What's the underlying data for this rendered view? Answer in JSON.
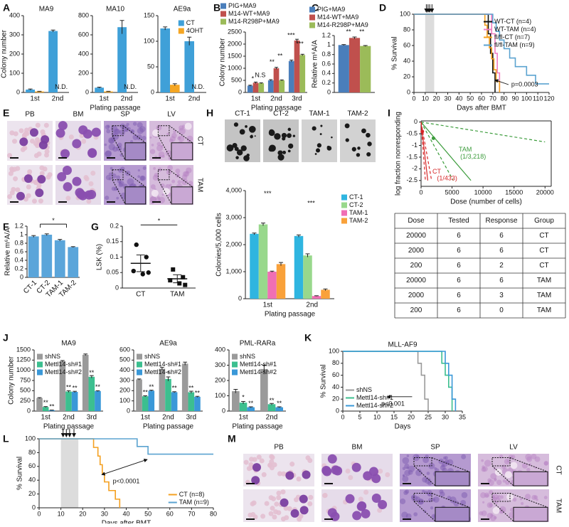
{
  "panels": [
    "A",
    "B",
    "C",
    "D",
    "E",
    "F",
    "G",
    "H",
    "I",
    "J",
    "K",
    "L",
    "M"
  ],
  "images": {
    "E": {
      "columns": [
        "PB",
        "BM",
        "SP",
        "LV"
      ],
      "rows": [
        "CT",
        "TAM"
      ]
    },
    "H": {
      "labels": [
        "CT-1",
        "CT-2",
        "TAM-1",
        "TAM-2"
      ]
    },
    "M": {
      "columns": [
        "PB",
        "BM",
        "SP",
        "LV"
      ],
      "rows": [
        "CT",
        "TAM"
      ]
    }
  },
  "table": {
    "header": [
      "Dose",
      "Tested",
      "Response",
      "Group"
    ],
    "rows": [
      [
        20000,
        6,
        6,
        "CT"
      ],
      [
        2000,
        6,
        6,
        "CT"
      ],
      [
        200,
        6,
        2,
        "CT"
      ],
      [
        20000,
        6,
        6,
        "TAM"
      ],
      [
        2000,
        6,
        3,
        "TAM"
      ],
      [
        200,
        6,
        0,
        "TAM"
      ]
    ]
  },
  "chart_data": [
    {
      "type": "bar",
      "title": "MA9",
      "ylabel": "Colony number",
      "categories": [
        "1st",
        "2nd"
      ],
      "series": [
        {
          "color": "#3fa0d8",
          "values": [
            15,
            320
          ],
          "errors": [
            3,
            5
          ]
        },
        {
          "color": "#f5a623",
          "values": [
            5,
            null
          ],
          "errors": [
            1,
            null
          ]
        }
      ],
      "ylim": [
        0,
        400
      ],
      "yticks": [
        0,
        100,
        200,
        300,
        400
      ],
      "annotations": [
        "N.D."
      ]
    },
    {
      "type": "bar",
      "title": "MA10",
      "xlabel": "Plating passage",
      "categories": [
        "1st",
        "2nd"
      ],
      "series": [
        {
          "color": "#3fa0d8",
          "values": [
            50,
            680
          ],
          "errors": [
            5,
            70
          ]
        },
        {
          "color": "#f5a623",
          "values": [
            10,
            null
          ],
          "errors": [
            2,
            null
          ]
        }
      ],
      "ylim": [
        0,
        800
      ],
      "yticks": [
        0,
        200,
        400,
        600,
        800
      ],
      "annotations": [
        "N.D."
      ]
    },
    {
      "type": "bar",
      "title": "AE9a",
      "categories": [
        "1st",
        "2nd"
      ],
      "legend": "upper right",
      "series": [
        {
          "name": "CT",
          "color": "#3fa0d8",
          "values": [
            125,
            100
          ],
          "errors": [
            3,
            8
          ]
        },
        {
          "name": "4OHT",
          "color": "#f5a623",
          "values": [
            15,
            null
          ],
          "errors": [
            2,
            null
          ]
        }
      ],
      "ylim": [
        0,
        150
      ],
      "yticks": [
        0,
        50,
        100,
        150
      ],
      "annotations": [
        "N.D."
      ]
    },
    {
      "type": "bar",
      "ylabel": "Colony number",
      "xlabel": "Plating passage",
      "categories": [
        "1st",
        "2nd",
        "3rd"
      ],
      "legend": "above",
      "series": [
        {
          "name": "PIG+MA9",
          "color": "#4a7ebb",
          "values": [
            280,
            500,
            1300
          ],
          "errors": [
            20,
            30,
            40
          ]
        },
        {
          "name": "M14-WT+MA9",
          "color": "#c0504d",
          "values": [
            400,
            1000,
            2150
          ],
          "errors": [
            30,
            40,
            50
          ]
        },
        {
          "name": "M14-R298P+MA9",
          "color": "#9bbb59",
          "values": [
            380,
            500,
            1550
          ],
          "errors": [
            20,
            20,
            30
          ]
        }
      ],
      "ylim": [
        0,
        2500
      ],
      "yticks": [
        0,
        500,
        1000,
        1500,
        2000,
        2500
      ],
      "annotations": [
        "*",
        "N.S",
        "**",
        "**",
        "***",
        "***"
      ]
    },
    {
      "type": "bar",
      "ylabel": "Relative m⁶A/A",
      "categories": [
        null
      ],
      "legend": "above",
      "series": [
        {
          "name": "PIG+MA9",
          "color": "#4a7ebb",
          "values": [
            1.0
          ],
          "errors": [
            0.01
          ]
        },
        {
          "name": "M14-WT+MA9",
          "color": "#c0504d",
          "values": [
            1.15
          ],
          "errors": [
            0.02
          ]
        },
        {
          "name": "M14-R298P+MA9",
          "color": "#9bbb59",
          "values": [
            0.98
          ],
          "errors": [
            0.01
          ]
        }
      ],
      "ylim": [
        0,
        1.2
      ],
      "yticks": [
        0,
        0.2,
        0.4,
        0.6,
        0.8,
        1,
        1.2
      ],
      "annotations": [
        "**",
        "**"
      ]
    },
    {
      "type": "line",
      "step": true,
      "xlabel": "Days after BMT",
      "ylabel": "% Survival",
      "legend": "upper right",
      "xlim": [
        0,
        120
      ],
      "xticks": [
        0,
        10,
        20,
        30,
        40,
        50,
        60,
        70,
        80,
        90,
        100,
        110,
        120
      ],
      "ylim": [
        0,
        100
      ],
      "yticks": [
        0,
        20,
        40,
        60,
        80,
        100
      ],
      "shaded": [
        10,
        18
      ],
      "arrows": [
        11,
        12.5,
        14,
        16
      ],
      "series": [
        {
          "name": "WT-CT (n=4)",
          "color": "#111111",
          "x": [
            0,
            66,
            68,
            70,
            72
          ],
          "values": [
            100,
            75,
            50,
            25,
            0
          ]
        },
        {
          "name": "WT-TAM (n=4)",
          "color": "#f07cc0",
          "x": [
            0,
            69,
            72,
            74,
            76
          ],
          "values": [
            100,
            75,
            50,
            25,
            0
          ]
        },
        {
          "name": "fl/fl-CT (n=7)",
          "color": "#f4a020",
          "x": [
            0,
            63,
            65,
            67,
            69,
            71,
            73,
            76
          ],
          "values": [
            100,
            86,
            71,
            57,
            43,
            29,
            14,
            0
          ]
        },
        {
          "name": "fl/fl-TAM (n=9)",
          "color": "#5ba3d0",
          "x": [
            0,
            70,
            73,
            76,
            80,
            85,
            90,
            100,
            108,
            120
          ],
          "values": [
            100,
            89,
            78,
            67,
            56,
            44,
            33,
            22,
            11,
            11
          ]
        }
      ],
      "annotations": [
        "p=0.0003"
      ]
    },
    {
      "type": "bar",
      "ylabel": "Relative m⁶A/A",
      "categories": [
        "CT-1",
        "CT-2",
        "TAM-1",
        "TAM-2"
      ],
      "color": "#5aa5da",
      "values": [
        0.96,
        1.0,
        0.87,
        0.71
      ],
      "errors": [
        0.02,
        0.02,
        0.02,
        0.01
      ],
      "ylim": [
        0,
        1.2
      ],
      "yticks": [
        0,
        0.2,
        0.4,
        0.6,
        0.8,
        1,
        1.2
      ],
      "annotations": [
        "*"
      ]
    },
    {
      "type": "dot",
      "ylabel": "LSK (%)",
      "categories": [
        "CT",
        "TAM"
      ],
      "points": [
        [
          0.14,
          0.1,
          0.055,
          0.045,
          0.05
        ],
        [
          0.06,
          0.035,
          0.025,
          0.015,
          0.01
        ]
      ],
      "means": [
        0.08,
        0.03
      ],
      "errors": [
        0.027,
        0.013
      ],
      "ylim": [
        0,
        0.2
      ],
      "yticks": [
        0,
        0.05,
        0.1,
        0.15,
        0.2
      ],
      "annotations": [
        "*"
      ]
    },
    {
      "type": "bar",
      "ylabel": "Colonies/5,000 cells",
      "xlabel": "Plating passage",
      "categories": [
        "1st",
        "2nd"
      ],
      "legend": "right",
      "series": [
        {
          "name": "CT-1",
          "color": "#2fb5e0",
          "values": [
            2400,
            2320
          ],
          "errors": [
            30,
            40
          ]
        },
        {
          "name": "CT-2",
          "color": "#98d88c",
          "values": [
            2750,
            1600
          ],
          "errors": [
            50,
            60
          ]
        },
        {
          "name": "TAM-1",
          "color": "#f06fb4",
          "values": [
            1000,
            100
          ],
          "errors": [
            20,
            10
          ]
        },
        {
          "name": "TAM-2",
          "color": "#f9a13a",
          "values": [
            1280,
            330
          ],
          "errors": [
            60,
            30
          ]
        }
      ],
      "ylim": [
        0,
        4000
      ],
      "yticks": [
        0,
        {
          "value": 1000,
          "label": "1,000"
        },
        {
          "value": 2000,
          "label": "2,000"
        },
        {
          "value": 3000,
          "label": "3,000"
        },
        {
          "value": 4000,
          "label": "4,000"
        }
      ],
      "annotations": [
        "***",
        "***"
      ]
    },
    {
      "type": "line",
      "frame": true,
      "xlabel": "Dose (number of cells)",
      "ylabel": "log fraction nonresponding",
      "xlim": [
        0,
        21000
      ],
      "xticks": [
        0,
        5000,
        10000,
        15000,
        20000
      ],
      "ylim": [
        -2.75,
        0.05
      ],
      "yticks": [
        0,
        -0.5,
        -1,
        -1.5,
        -2,
        -2.5
      ],
      "series": [
        {
          "color": "#3c9c3c",
          "x": [
            0,
            8045
          ],
          "values": [
            0,
            -2.5
          ]
        },
        {
          "color": "#3c9c3c",
          "dash": true,
          "x": [
            0,
            20000
          ],
          "values": [
            0,
            -0.85
          ]
        },
        {
          "color": "#3c9c3c",
          "dash": true,
          "x": [
            0,
            5200
          ],
          "values": [
            0,
            -2.5
          ]
        },
        {
          "color": "#d62728",
          "x": [
            0,
            1082
          ],
          "values": [
            0,
            -2.5
          ]
        },
        {
          "color": "#d62728",
          "dash": true,
          "x": [
            0,
            1700
          ],
          "values": [
            0,
            -2.5
          ]
        },
        {
          "color": "#d62728",
          "dash": true,
          "x": [
            0,
            700
          ],
          "values": [
            0,
            -2.5
          ]
        },
        {
          "color": "#3c9c3c",
          "marker": true,
          "x": [
            2000
          ],
          "values": [
            -0.69
          ]
        },
        {
          "color": "#d62728",
          "marker": true,
          "x": [
            200
          ],
          "values": [
            -0.405
          ]
        }
      ],
      "annotations": [
        "TAM",
        "(1/3,218)",
        "CT",
        "(1/433)"
      ]
    },
    {
      "type": "bar",
      "title": "MA9",
      "ylabel": "Colony number",
      "xlabel": "Plating passage",
      "categories": [
        "1st",
        "2nd",
        "3rd"
      ],
      "legend": "upper left",
      "series": [
        {
          "name": "shNS",
          "color": "#9a9a9a",
          "values": [
            320,
            1220,
            1380
          ],
          "errors": [
            10,
            20,
            20
          ]
        },
        {
          "name": "Mettl14-sh#1",
          "color": "#3cbf8f",
          "values": [
            100,
            480,
            840
          ],
          "errors": [
            10,
            20,
            30
          ]
        },
        {
          "name": "Mettl14-sh#2",
          "color": "#3a98d8",
          "values": [
            20,
            470,
            490
          ],
          "errors": [
            5,
            15,
            10
          ]
        }
      ],
      "ylim": [
        0,
        1500
      ],
      "yticks": [
        0,
        250,
        500,
        750,
        1000,
        1250,
        1500
      ],
      "annotations": [
        "**",
        "**",
        "**",
        "**",
        "**",
        "**"
      ]
    },
    {
      "type": "bar",
      "title": "AE9a",
      "xlabel": "Plating passage",
      "categories": [
        "1st",
        "2nd",
        "3rd"
      ],
      "legend": "upper left",
      "series": [
        {
          "name": "shNS",
          "color": "#9a9a9a",
          "values": [
            310,
            415,
            465
          ],
          "errors": [
            5,
            15,
            15
          ]
        },
        {
          "name": "Mettl14-sh#1",
          "color": "#3cbf8f",
          "values": [
            145,
            315,
            185
          ],
          "errors": [
            5,
            20,
            10
          ]
        },
        {
          "name": "Mettl14-sh#2",
          "color": "#3a98d8",
          "values": [
            200,
            185,
            140
          ],
          "errors": [
            5,
            5,
            5
          ]
        }
      ],
      "ylim": [
        0,
        600
      ],
      "yticks": [
        0,
        100,
        200,
        300,
        400,
        500,
        600
      ],
      "annotations": [
        "**",
        "**",
        "*",
        "**",
        "**",
        "**"
      ]
    },
    {
      "type": "bar",
      "title": "PML-RARa",
      "xlabel": "Plating passage",
      "categories": [
        "1st",
        "2nd"
      ],
      "legend": "upper left",
      "series": [
        {
          "name": "shNS",
          "color": "#9a9a9a",
          "values": [
            130,
            275
          ],
          "errors": [
            12,
            25
          ]
        },
        {
          "name": "Mettl14-sh#1",
          "color": "#3cbf8f",
          "values": [
            55,
            45
          ],
          "errors": [
            8,
            5
          ]
        },
        {
          "name": "Mettl14-sh#2",
          "color": "#3a98d8",
          "values": [
            25,
            25
          ],
          "errors": [
            3,
            3
          ]
        }
      ],
      "ylim": [
        0,
        400
      ],
      "yticks": [
        0,
        100,
        200,
        300,
        400
      ],
      "annotations": [
        "*",
        "**",
        "**",
        "**"
      ]
    },
    {
      "type": "line",
      "step": true,
      "title": "MLL-AF9",
      "xlabel": "Days",
      "ylabel": "% Survival",
      "legend": "lower left",
      "xlim": [
        0,
        35
      ],
      "xticks": [
        0,
        5,
        10,
        15,
        20,
        25,
        30,
        35
      ],
      "ylim": [
        0,
        100
      ],
      "yticks": [
        0,
        20,
        40,
        60,
        80,
        100
      ],
      "series": [
        {
          "name": "shNS",
          "color": "#9a9a9a",
          "x": [
            0,
            22,
            23,
            24,
            25
          ],
          "values": [
            100,
            80,
            60,
            20,
            0
          ]
        },
        {
          "name": "Mettl14-sh#1",
          "color": "#3cbf8f",
          "x": [
            0,
            29,
            30,
            31,
            32
          ],
          "values": [
            100,
            80,
            60,
            40,
            0
          ]
        },
        {
          "name": "Mettl14-sh#2",
          "color": "#3a98d8",
          "x": [
            0,
            30,
            31,
            32,
            33
          ],
          "values": [
            100,
            80,
            60,
            20,
            0
          ]
        }
      ],
      "annotations": [
        "p<0.001"
      ]
    },
    {
      "type": "line",
      "step": true,
      "xlabel": "Days after BMT",
      "ylabel": "% Survival",
      "legend": "lower right",
      "xlim": [
        0,
        80
      ],
      "xticks": [
        0,
        10,
        20,
        30,
        40,
        50,
        60,
        70,
        80
      ],
      "ylim": [
        0,
        100
      ],
      "yticks": [
        0,
        20,
        40,
        60,
        80,
        100
      ],
      "shaded": [
        10,
        18
      ],
      "arrows": [
        11,
        12.5,
        14,
        16
      ],
      "series": [
        {
          "name": "CT (n=8)",
          "color": "#f4a020",
          "x": [
            0,
            25,
            27,
            28,
            29,
            30,
            32,
            35,
            37
          ],
          "values": [
            100,
            87.5,
            75,
            62.5,
            50,
            37.5,
            25,
            12.5,
            0
          ]
        },
        {
          "name": "TAM (n=9)",
          "color": "#5ba3d0",
          "x": [
            0,
            45,
            50,
            80
          ],
          "values": [
            100,
            88.9,
            77.8,
            77.8
          ]
        }
      ],
      "annotations": [
        "p<0.0001"
      ]
    }
  ]
}
